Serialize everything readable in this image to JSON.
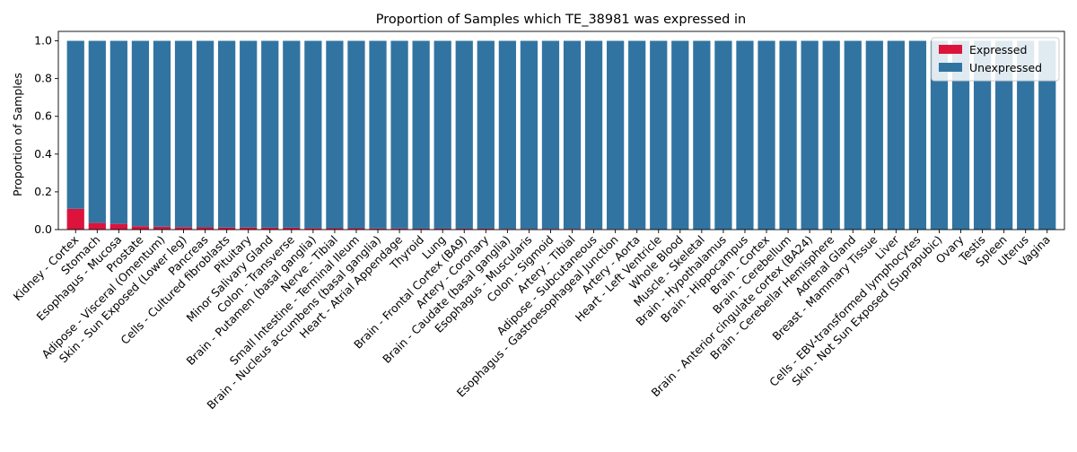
{
  "chart_data": {
    "type": "bar",
    "stacked": true,
    "title": "Proportion of Samples which TE_38981 was expressed in",
    "xlabel": "",
    "ylabel": "Proportion of Samples",
    "ylim": [
      0,
      1.05
    ],
    "yticks": [
      "0.0",
      "0.2",
      "0.4",
      "0.6",
      "0.8",
      "1.0"
    ],
    "grid": false,
    "legend_position": "top-right",
    "categories": [
      "Kidney - Cortex",
      "Stomach",
      "Esophagus - Mucosa",
      "Prostate",
      "Adipose - Visceral (Omentum)",
      "Skin - Sun Exposed (Lower leg)",
      "Pancreas",
      "Cells - Cultured fibroblasts",
      "Pituitary",
      "Minor Salivary Gland",
      "Colon - Transverse",
      "Brain - Putamen (basal ganglia)",
      "Nerve - Tibial",
      "Small Intestine - Terminal Ileum",
      "Brain - Nucleus accumbens (basal ganglia)",
      "Heart - Atrial Appendage",
      "Thyroid",
      "Lung",
      "Brain - Frontal Cortex (BA9)",
      "Artery - Coronary",
      "Brain - Caudate (basal ganglia)",
      "Esophagus - Muscularis",
      "Colon - Sigmoid",
      "Artery - Tibial",
      "Adipose - Subcutaneous",
      "Esophagus - Gastroesophageal Junction",
      "Artery - Aorta",
      "Heart - Left Ventricle",
      "Whole Blood",
      "Muscle - Skeletal",
      "Brain - Hypothalamus",
      "Brain - Hippocampus",
      "Brain - Cortex",
      "Brain - Cerebellum",
      "Brain - Anterior cingulate cortex (BA24)",
      "Brain - Cerebellar Hemisphere",
      "Adrenal Gland",
      "Breast - Mammary Tissue",
      "Liver",
      "Cells - EBV-transformed lymphocytes",
      "Skin - Not Sun Exposed (Suprapubic)",
      "Ovary",
      "Testis",
      "Spleen",
      "Uterus",
      "Vagina"
    ],
    "series": [
      {
        "name": "Expressed",
        "color": "#dc143c",
        "values": [
          0.11,
          0.035,
          0.03,
          0.018,
          0.015,
          0.013,
          0.012,
          0.011,
          0.011,
          0.01,
          0.01,
          0.008,
          0.007,
          0.007,
          0.006,
          0.006,
          0.005,
          0.005,
          0.005,
          0.005,
          0.004,
          0.004,
          0.004,
          0.004,
          0.003,
          0.003,
          0.003,
          0.002,
          0.0,
          0.0,
          0.0,
          0.0,
          0.0,
          0.0,
          0.0,
          0.0,
          0.0,
          0.0,
          0.0,
          0.0,
          0.0,
          0.0,
          0.0,
          0.0,
          0.0,
          0.0
        ]
      },
      {
        "name": "Unexpressed",
        "color": "#3274a1",
        "values": [
          0.89,
          0.965,
          0.97,
          0.982,
          0.985,
          0.987,
          0.988,
          0.989,
          0.989,
          0.99,
          0.99,
          0.992,
          0.993,
          0.993,
          0.994,
          0.994,
          0.995,
          0.995,
          0.995,
          0.995,
          0.996,
          0.996,
          0.996,
          0.996,
          0.997,
          0.997,
          0.997,
          0.998,
          1.0,
          1.0,
          1.0,
          1.0,
          1.0,
          1.0,
          1.0,
          1.0,
          1.0,
          1.0,
          1.0,
          1.0,
          1.0,
          1.0,
          1.0,
          1.0,
          1.0,
          1.0
        ]
      }
    ]
  }
}
